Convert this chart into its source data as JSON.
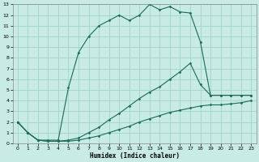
{
  "xlabel": "Humidex (Indice chaleur)",
  "bg_color": "#c8ebe4",
  "grid_color": "#a0d4c8",
  "line_color": "#1a6b5a",
  "xlim": [
    -0.5,
    23.5
  ],
  "ylim": [
    0,
    13
  ],
  "xticks": [
    0,
    1,
    2,
    3,
    4,
    5,
    6,
    7,
    8,
    9,
    10,
    11,
    12,
    13,
    14,
    15,
    16,
    17,
    18,
    19,
    20,
    21,
    22,
    23
  ],
  "yticks": [
    0,
    1,
    2,
    3,
    4,
    5,
    6,
    7,
    8,
    9,
    10,
    11,
    12,
    13
  ],
  "curve1_x": [
    0,
    1,
    2,
    3,
    4,
    5,
    6,
    7,
    8,
    9,
    10,
    11,
    12,
    13,
    14,
    15,
    16,
    17,
    18,
    19,
    20,
    21,
    22,
    23
  ],
  "curve1_y": [
    2,
    1,
    0.3,
    0.3,
    0.3,
    5.2,
    8.5,
    10,
    11,
    11.5,
    12,
    11.5,
    12,
    13,
    12.5,
    12.8,
    12.3,
    12.2,
    9.5,
    4.5,
    4.5,
    4.5,
    4.5,
    4.5
  ],
  "curve2_x": [
    0,
    1,
    2,
    3,
    4,
    5,
    6,
    7,
    8,
    9,
    10,
    11,
    12,
    13,
    14,
    15,
    16,
    17,
    18,
    19,
    20,
    21,
    22,
    23
  ],
  "curve2_y": [
    2,
    1,
    0.3,
    0.2,
    0.2,
    0.3,
    0.5,
    1.0,
    1.5,
    2.2,
    2.8,
    3.5,
    4.2,
    4.8,
    5.3,
    6.0,
    6.7,
    7.5,
    5.5,
    4.5,
    4.5,
    4.5,
    4.5,
    4.5
  ],
  "curve3_x": [
    0,
    1,
    2,
    3,
    4,
    5,
    6,
    7,
    8,
    9,
    10,
    11,
    12,
    13,
    14,
    15,
    16,
    17,
    18,
    19,
    20,
    21,
    22,
    23
  ],
  "curve3_y": [
    2,
    1,
    0.3,
    0.2,
    0.2,
    0.2,
    0.3,
    0.5,
    0.7,
    1.0,
    1.3,
    1.6,
    2.0,
    2.3,
    2.6,
    2.9,
    3.1,
    3.3,
    3.5,
    3.6,
    3.6,
    3.7,
    3.8,
    4.0
  ]
}
